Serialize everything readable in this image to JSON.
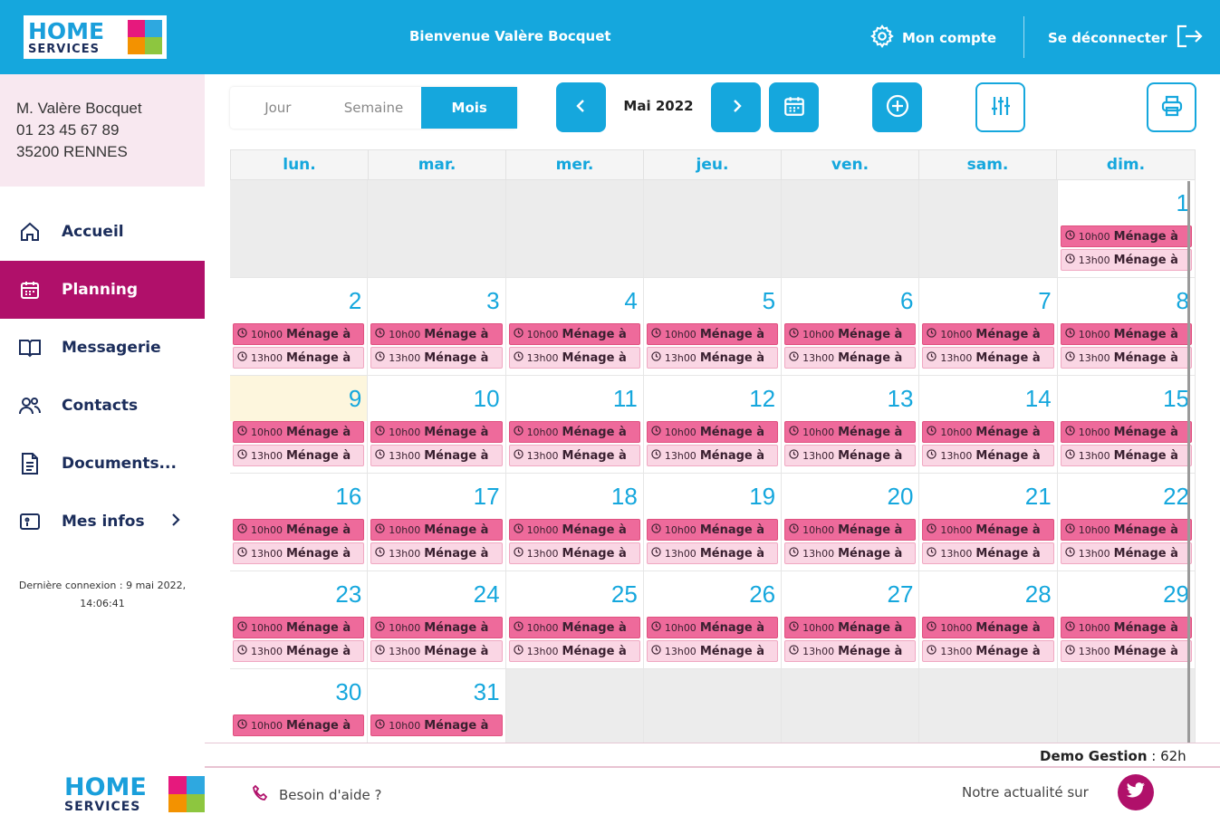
{
  "header": {
    "logo_home": "HOME",
    "logo_services": "SERVICES",
    "welcome": "Bienvenue Valère Bocquet",
    "account_label": "Mon compte",
    "logout_label": "Se déconnecter"
  },
  "user": {
    "name": "M. Valère Bocquet",
    "phone": "01 23 45 67 89",
    "city": "35200 RENNES"
  },
  "sidebar": {
    "items": [
      {
        "label": "Accueil",
        "icon": "home-icon"
      },
      {
        "label": "Planning",
        "icon": "calendar-icon",
        "active": true
      },
      {
        "label": "Messagerie",
        "icon": "book-icon"
      },
      {
        "label": "Contacts",
        "icon": "users-icon"
      },
      {
        "label": "Documents...",
        "icon": "document-icon"
      },
      {
        "label": "Mes infos",
        "icon": "id-card-icon"
      }
    ],
    "last_connection_line1": "Dernière connexion : 9 mai 2022,",
    "last_connection_line2": "14:06:41"
  },
  "toolbar": {
    "views": [
      "Jour",
      "Semaine",
      "Mois"
    ],
    "active_view": "Mois",
    "month_label": "Mai 2022"
  },
  "calendar": {
    "weekdays": [
      "lun.",
      "mar.",
      "mer.",
      "jeu.",
      "ven.",
      "sam.",
      "dim."
    ],
    "event_am_time": "10h00",
    "event_pm_time": "13h00",
    "event_title": "Ménage à",
    "today": 9,
    "first_weekday_offset": 6,
    "days_in_month": 31,
    "last_day_pm_events": 29
  },
  "summary": {
    "label": "Demo Gestion",
    "value": " : 62h"
  },
  "footer": {
    "help": "Besoin d'aide ?",
    "news": "Notre actualité sur"
  },
  "colors": {
    "primary": "#15a7dd",
    "accent": "#b0106a",
    "event_am": "#ee6a9b",
    "event_pm": "#fad6e4"
  }
}
